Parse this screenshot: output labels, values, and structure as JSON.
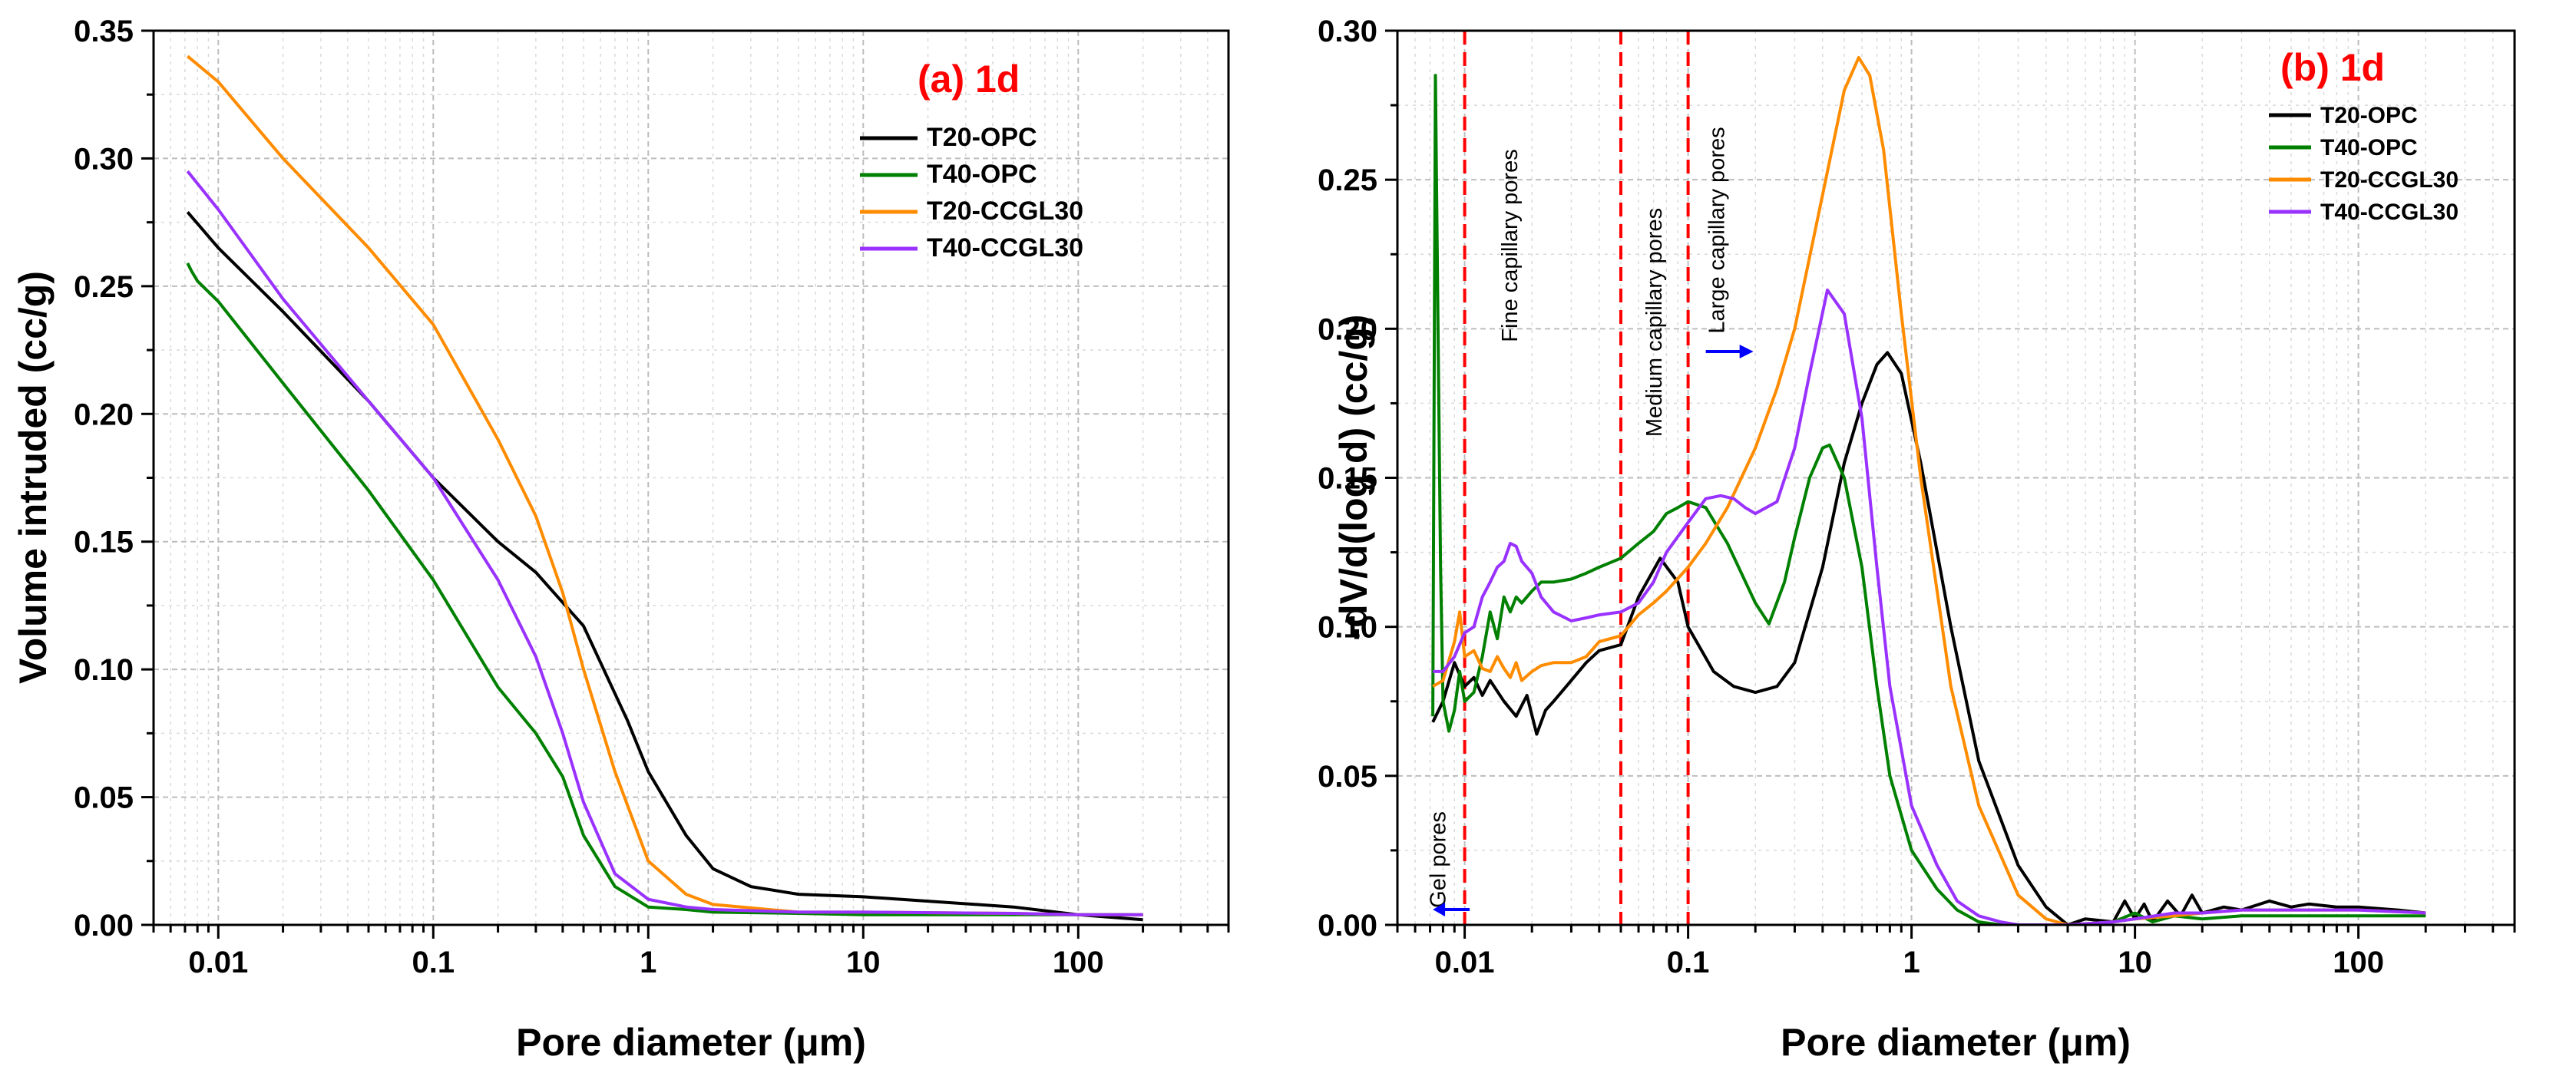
{
  "chart_data": [
    {
      "type": "line",
      "panel_label": "(a) 1d",
      "title_color": "#ff0000",
      "xlabel": "Pore diameter (μm)",
      "ylabel": "Volume intruded (cc/g)",
      "xscale": "log",
      "xlim": [
        0.005,
        500
      ],
      "ylim": [
        0,
        0.35
      ],
      "xticks": [
        "0.01",
        "0.1",
        "1",
        "10",
        "100"
      ],
      "yticks": [
        "0.00",
        "0.05",
        "0.10",
        "0.15",
        "0.20",
        "0.25",
        "0.30",
        "0.35"
      ],
      "grid": true,
      "legend_position": "top-right",
      "series": [
        {
          "name": "T20-OPC",
          "color": "#000000",
          "x": [
            0.0072,
            0.01,
            0.02,
            0.05,
            0.1,
            0.2,
            0.3,
            0.5,
            0.8,
            1,
            1.5,
            2,
            3,
            5,
            10,
            50,
            100,
            200
          ],
          "y": [
            0.279,
            0.265,
            0.24,
            0.205,
            0.175,
            0.15,
            0.138,
            0.117,
            0.08,
            0.06,
            0.035,
            0.022,
            0.015,
            0.012,
            0.011,
            0.007,
            0.004,
            0.002
          ]
        },
        {
          "name": "T40-OPC",
          "color": "#008000",
          "x": [
            0.0072,
            0.0075,
            0.008,
            0.01,
            0.02,
            0.05,
            0.1,
            0.2,
            0.3,
            0.4,
            0.5,
            0.7,
            1,
            1.5,
            2,
            5,
            10,
            50,
            100,
            200
          ],
          "y": [
            0.259,
            0.256,
            0.252,
            0.244,
            0.212,
            0.17,
            0.135,
            0.093,
            0.075,
            0.058,
            0.035,
            0.015,
            0.007,
            0.006,
            0.005,
            0.0045,
            0.004,
            0.004,
            0.004,
            0.004
          ]
        },
        {
          "name": "T20-CCGL30",
          "color": "#ff8c00",
          "x": [
            0.0072,
            0.01,
            0.02,
            0.05,
            0.1,
            0.2,
            0.3,
            0.4,
            0.5,
            0.7,
            1,
            1.5,
            2,
            5,
            10,
            50,
            100,
            200
          ],
          "y": [
            0.34,
            0.33,
            0.3,
            0.265,
            0.235,
            0.19,
            0.16,
            0.13,
            0.1,
            0.06,
            0.025,
            0.012,
            0.008,
            0.005,
            0.005,
            0.0045,
            0.004,
            0.004
          ]
        },
        {
          "name": "T40-CCGL30",
          "color": "#9932ff",
          "x": [
            0.0072,
            0.01,
            0.02,
            0.05,
            0.1,
            0.2,
            0.3,
            0.4,
            0.5,
            0.7,
            1,
            1.5,
            2,
            5,
            10,
            50,
            100,
            200
          ],
          "y": [
            0.295,
            0.28,
            0.245,
            0.205,
            0.175,
            0.135,
            0.105,
            0.075,
            0.048,
            0.02,
            0.01,
            0.007,
            0.006,
            0.005,
            0.005,
            0.0045,
            0.004,
            0.004
          ]
        }
      ]
    },
    {
      "type": "line",
      "panel_label": "(b) 1d",
      "title_color": "#ff0000",
      "xlabel": "Pore diameter (μm)",
      "ylabel": "-dV/d(log d) (cc/g)",
      "xscale": "log",
      "xlim": [
        0.005,
        500
      ],
      "ylim": [
        0,
        0.3
      ],
      "xticks": [
        "0.01",
        "0.1",
        "1",
        "10",
        "100"
      ],
      "yticks": [
        "0.00",
        "0.05",
        "0.10",
        "0.15",
        "0.20",
        "0.25",
        "0.30"
      ],
      "grid": true,
      "legend_position": "top-right",
      "region_boundaries": [
        0.01,
        0.05,
        0.1
      ],
      "region_labels": [
        "Gel pores",
        "Fine capillary pores",
        "Medium capillary pores",
        "Large capillary pores"
      ],
      "series": [
        {
          "name": "T20-OPC",
          "color": "#000000",
          "x": [
            0.0072,
            0.008,
            0.009,
            0.01,
            0.011,
            0.012,
            0.013,
            0.015,
            0.017,
            0.019,
            0.021,
            0.023,
            0.025,
            0.03,
            0.035,
            0.04,
            0.05,
            0.06,
            0.075,
            0.09,
            0.1,
            0.13,
            0.16,
            0.2,
            0.25,
            0.3,
            0.4,
            0.5,
            0.6,
            0.7,
            0.78,
            0.9,
            1.1,
            1.5,
            2,
            3,
            4,
            5,
            6,
            8,
            9,
            10,
            11,
            12,
            14,
            16,
            18,
            20,
            25,
            30,
            40,
            50,
            60,
            80,
            100,
            150,
            200
          ],
          "y": [
            0.068,
            0.075,
            0.088,
            0.08,
            0.083,
            0.077,
            0.082,
            0.075,
            0.07,
            0.077,
            0.064,
            0.072,
            0.075,
            0.082,
            0.088,
            0.092,
            0.094,
            0.11,
            0.123,
            0.115,
            0.1,
            0.085,
            0.08,
            0.078,
            0.08,
            0.088,
            0.12,
            0.155,
            0.175,
            0.188,
            0.192,
            0.185,
            0.155,
            0.1,
            0.055,
            0.02,
            0.006,
            0,
            0.002,
            0.001,
            0.008,
            0.002,
            0.007,
            0.001,
            0.008,
            0.003,
            0.01,
            0.004,
            0.006,
            0.005,
            0.008,
            0.006,
            0.007,
            0.006,
            0.006,
            0.005,
            0.004
          ]
        },
        {
          "name": "T40-OPC",
          "color": "#008000",
          "x": [
            0.0072,
            0.0074,
            0.0076,
            0.0078,
            0.008,
            0.0085,
            0.009,
            0.0095,
            0.01,
            0.011,
            0.012,
            0.013,
            0.014,
            0.015,
            0.016,
            0.017,
            0.018,
            0.02,
            0.022,
            0.025,
            0.03,
            0.035,
            0.04,
            0.05,
            0.06,
            0.07,
            0.08,
            0.09,
            0.1,
            0.12,
            0.15,
            0.2,
            0.23,
            0.27,
            0.3,
            0.35,
            0.4,
            0.43,
            0.5,
            0.6,
            0.7,
            0.8,
            1,
            1.3,
            1.6,
            2,
            2.5,
            3,
            4,
            5,
            6,
            8,
            10,
            12,
            15,
            20,
            30,
            50,
            100,
            200
          ],
          "y": [
            0.07,
            0.285,
            0.2,
            0.12,
            0.075,
            0.065,
            0.072,
            0.085,
            0.075,
            0.078,
            0.09,
            0.105,
            0.096,
            0.11,
            0.105,
            0.11,
            0.108,
            0.112,
            0.115,
            0.115,
            0.116,
            0.118,
            0.12,
            0.123,
            0.128,
            0.132,
            0.138,
            0.14,
            0.142,
            0.14,
            0.128,
            0.108,
            0.101,
            0.115,
            0.13,
            0.15,
            0.16,
            0.161,
            0.15,
            0.12,
            0.08,
            0.05,
            0.025,
            0.012,
            0.005,
            0.001,
            0,
            0,
            0,
            0,
            0,
            0.001,
            0.004,
            0.001,
            0.003,
            0.002,
            0.003,
            0.003,
            0.003,
            0.003
          ]
        },
        {
          "name": "T20-CCGL30",
          "color": "#ff8c00",
          "x": [
            0.0072,
            0.008,
            0.009,
            0.0095,
            0.01,
            0.011,
            0.012,
            0.013,
            0.014,
            0.015,
            0.016,
            0.017,
            0.018,
            0.02,
            0.022,
            0.025,
            0.03,
            0.035,
            0.04,
            0.05,
            0.06,
            0.07,
            0.08,
            0.1,
            0.12,
            0.15,
            0.2,
            0.25,
            0.3,
            0.4,
            0.5,
            0.58,
            0.65,
            0.75,
            0.9,
            1.1,
            1.5,
            2,
            3,
            4,
            5,
            8,
            10,
            15,
            20,
            30,
            50,
            100,
            200
          ],
          "y": [
            0.08,
            0.082,
            0.095,
            0.105,
            0.09,
            0.092,
            0.086,
            0.085,
            0.09,
            0.086,
            0.083,
            0.088,
            0.082,
            0.085,
            0.087,
            0.088,
            0.088,
            0.09,
            0.095,
            0.097,
            0.104,
            0.108,
            0.112,
            0.12,
            0.128,
            0.14,
            0.16,
            0.18,
            0.2,
            0.245,
            0.28,
            0.291,
            0.285,
            0.26,
            0.205,
            0.15,
            0.08,
            0.04,
            0.01,
            0.002,
            0,
            0.001,
            0.002,
            0.003,
            0.004,
            0.005,
            0.005,
            0.005,
            0.004
          ]
        },
        {
          "name": "T40-CCGL30",
          "color": "#9932ff",
          "x": [
            0.0072,
            0.008,
            0.009,
            0.01,
            0.011,
            0.012,
            0.013,
            0.014,
            0.015,
            0.016,
            0.017,
            0.018,
            0.02,
            0.022,
            0.025,
            0.03,
            0.035,
            0.04,
            0.05,
            0.06,
            0.07,
            0.08,
            0.1,
            0.12,
            0.14,
            0.16,
            0.18,
            0.2,
            0.25,
            0.3,
            0.35,
            0.42,
            0.5,
            0.6,
            0.7,
            0.8,
            1,
            1.3,
            1.6,
            2,
            2.5,
            3,
            4,
            5,
            8,
            10,
            15,
            20,
            30,
            50,
            100,
            200
          ],
          "y": [
            0.085,
            0.085,
            0.09,
            0.098,
            0.1,
            0.11,
            0.115,
            0.12,
            0.122,
            0.128,
            0.127,
            0.122,
            0.118,
            0.11,
            0.105,
            0.102,
            0.103,
            0.104,
            0.105,
            0.108,
            0.115,
            0.125,
            0.135,
            0.143,
            0.144,
            0.143,
            0.14,
            0.138,
            0.142,
            0.16,
            0.185,
            0.213,
            0.205,
            0.17,
            0.12,
            0.08,
            0.04,
            0.02,
            0.008,
            0.003,
            0.001,
            0,
            0,
            0,
            0.001,
            0.002,
            0.004,
            0.004,
            0.005,
            0.005,
            0.005,
            0.004
          ]
        }
      ]
    }
  ]
}
